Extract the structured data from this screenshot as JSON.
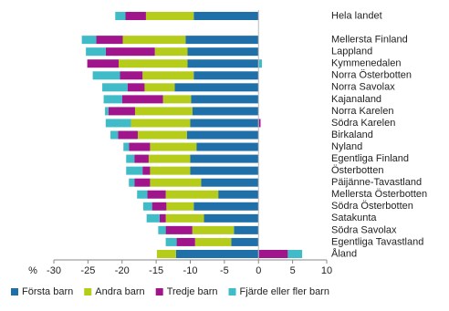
{
  "chart_data": {
    "type": "diverging-stacked-barh",
    "x_label": "%",
    "categories": [
      "Hela landet",
      null,
      "Mellersta Finland",
      "Lappland",
      "Kymmenedalen",
      "Norra Österbotten",
      "Norra Savolax",
      "Kajanaland",
      "Norra Karelen",
      "Södra Karelen",
      "Birkaland",
      "Nyland",
      "Egentliga Finland",
      "Österbotten",
      "Päijänne-Tavastland",
      "Mellersta Österbotten",
      "Södra Österbotten",
      "Satakunta",
      "Södra Savolax",
      "Egentliga Tavastland",
      "Åland"
    ],
    "series": [
      {
        "name": "Första barn",
        "color": "#1f6fa8",
        "values": [
          -9.5,
          null,
          -10.7,
          -10.4,
          -10.4,
          -9.5,
          -12.3,
          -9.9,
          -9.7,
          -10,
          -10.5,
          -9.1,
          -10,
          -10,
          -8.4,
          -5.9,
          -9.5,
          -8,
          -3.6,
          -4,
          -12.1
        ]
      },
      {
        "name": "Andra barn",
        "color": "#b5cc1a",
        "values": [
          -7,
          null,
          -9.2,
          -4.8,
          -10.1,
          -7.5,
          -4.4,
          -4.1,
          -8.4,
          -8.7,
          -7.2,
          -6.8,
          -6.1,
          -5.9,
          -7.5,
          -7.7,
          -4,
          -5.6,
          -6.1,
          -5.3,
          -2.8
        ]
      },
      {
        "name": "Tredje barn",
        "color": "#a0148c",
        "values": [
          -3,
          null,
          -3.9,
          -7.2,
          -4.6,
          -3.3,
          -2.5,
          -6,
          -3.9,
          0.3,
          -2.9,
          -3.1,
          -2.1,
          -1.1,
          -2.3,
          -2.7,
          -2.1,
          -0.9,
          -3.9,
          -2.7,
          4.3
        ]
      },
      {
        "name": "Fjärde eller fler barn",
        "color": "#3fbcc8",
        "values": [
          -1.5,
          null,
          -2.1,
          -2.9,
          0.5,
          -4,
          -3.7,
          -2.7,
          -0.5,
          -3.7,
          -1.1,
          -0.8,
          -1.2,
          -2.4,
          -0.8,
          -1.5,
          -1.3,
          -1.9,
          -1.1,
          -1.6,
          2.1
        ]
      }
    ],
    "xlim": [
      -30,
      10
    ],
    "xticks": [
      -30,
      -25,
      -20,
      -15,
      -10,
      -5,
      0,
      5,
      10
    ],
    "legend": "bottom"
  }
}
